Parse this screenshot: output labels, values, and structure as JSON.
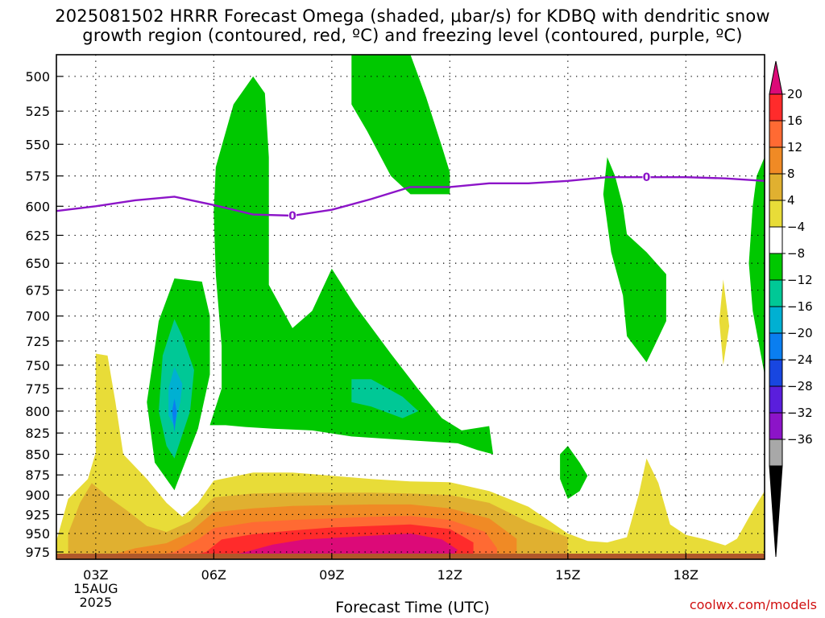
{
  "title_line1": "2025081502 HRRR Forecast Omega (shaded, μbar/s) for KDBQ with dendritic snow",
  "title_line2": "growth region (contoured, red, ºC) and freezing level (contoured, purple, ºC)",
  "credit": "coolwx.com/models",
  "chart_data": {
    "type": "contour",
    "title": "2025081502 HRRR Forecast Omega (shaded, μbar/s) for KDBQ with dendritic snow growth region (contoured, red, ºC) and freezing level (contoured, purple, ºC)",
    "xlabel": "Forecast Time (UTC)",
    "ylabel": "",
    "x_ticks": [
      {
        "hour": 3,
        "label": "03Z",
        "sub": [
          "15AUG",
          "2025"
        ]
      },
      {
        "hour": 6,
        "label": "06Z"
      },
      {
        "hour": 9,
        "label": "09Z"
      },
      {
        "hour": 12,
        "label": "12Z"
      },
      {
        "hour": 15,
        "label": "15Z"
      },
      {
        "hour": 18,
        "label": "18Z"
      }
    ],
    "xlim": [
      2,
      20
    ],
    "y_ticks": [
      500,
      525,
      550,
      575,
      600,
      625,
      650,
      675,
      700,
      725,
      750,
      775,
      800,
      825,
      850,
      875,
      900,
      925,
      950,
      975
    ],
    "y_scale": "log",
    "ylim": [
      985,
      485
    ],
    "grid": true,
    "colorbar": {
      "labels": [
        "20",
        "16",
        "12",
        "8",
        "4",
        "−4",
        "−8",
        "−12",
        "−16",
        "−20",
        "−24",
        "−28",
        "−32",
        "−36"
      ],
      "levels": [
        20,
        16,
        12,
        8,
        4,
        -4,
        -8,
        -12,
        -16,
        -20,
        -24,
        -28,
        -32,
        -36
      ],
      "colors": [
        "#dc0a78",
        "#ff2b2b",
        "#ff6a33",
        "#f08a25",
        "#e0b030",
        "#e8dc38",
        "#ffffff",
        "#00c800",
        "#00c896",
        "#00b0d2",
        "#0a7ef0",
        "#1846e0",
        "#5a1edc",
        "#8c14c8",
        "#a8a8a8",
        "#000000"
      ]
    },
    "freezing_level": {
      "label": "0",
      "points": [
        [
          2,
          604
        ],
        [
          3,
          600
        ],
        [
          4,
          595
        ],
        [
          5,
          592
        ],
        [
          6,
          599
        ],
        [
          7,
          607
        ],
        [
          8,
          608
        ],
        [
          9,
          603
        ],
        [
          10,
          594
        ],
        [
          11,
          584
        ],
        [
          12,
          584
        ],
        [
          13,
          581
        ],
        [
          14,
          581
        ],
        [
          15,
          579
        ],
        [
          16,
          576
        ],
        [
          17,
          576
        ],
        [
          18,
          576
        ],
        [
          19,
          577
        ],
        [
          20,
          579
        ]
      ]
    },
    "omega_regions": [
      {
        "value": "-8",
        "color": "#00c800",
        "polygon": [
          [
            5.0,
            894
          ],
          [
            5.6,
            820
          ],
          [
            5.9,
            760
          ],
          [
            5.9,
            700
          ],
          [
            5.7,
            667
          ],
          [
            5.0,
            664
          ],
          [
            4.6,
            705
          ],
          [
            4.3,
            790
          ],
          [
            4.5,
            860
          ]
        ]
      },
      {
        "value": "-12",
        "color": "#00c896",
        "polygon": [
          [
            5.0,
            855
          ],
          [
            5.4,
            800
          ],
          [
            5.5,
            755
          ],
          [
            5.2,
            720
          ],
          [
            5.0,
            703
          ],
          [
            4.7,
            740
          ],
          [
            4.6,
            800
          ],
          [
            4.8,
            840
          ]
        ]
      },
      {
        "value": "-16",
        "color": "#00b0d2",
        "polygon": [
          [
            5.0,
            818
          ],
          [
            5.15,
            790
          ],
          [
            5.2,
            770
          ],
          [
            5.0,
            752
          ],
          [
            4.85,
            775
          ],
          [
            4.85,
            805
          ]
        ]
      },
      {
        "value": "-20",
        "color": "#0a7ef0",
        "polygon": [
          [
            5.0,
            824
          ],
          [
            5.06,
            800
          ],
          [
            5.0,
            786
          ],
          [
            4.94,
            800
          ]
        ]
      },
      {
        "value": "-8",
        "color": "#00c800",
        "polygon": [
          [
            7.0,
            500
          ],
          [
            7.3,
            512
          ],
          [
            7.4,
            560
          ],
          [
            7.4,
            670
          ],
          [
            8.0,
            712
          ],
          [
            8.5,
            695
          ],
          [
            9.0,
            655
          ],
          [
            9.6,
            690
          ],
          [
            10.5,
            738
          ],
          [
            11.2,
            776
          ],
          [
            11.8,
            808
          ],
          [
            12.3,
            822
          ],
          [
            13.0,
            817
          ],
          [
            13.1,
            850
          ],
          [
            12.7,
            845
          ],
          [
            12.2,
            837
          ],
          [
            11.5,
            835
          ],
          [
            10.5,
            832
          ],
          [
            9.5,
            829
          ],
          [
            8.5,
            822
          ],
          [
            7.5,
            820
          ],
          [
            6.8,
            818
          ],
          [
            6.3,
            816
          ],
          [
            5.9,
            816
          ],
          [
            6.2,
            775
          ],
          [
            6.2,
            730
          ],
          [
            6.05,
            660
          ],
          [
            6.0,
            605
          ],
          [
            6.05,
            568
          ],
          [
            6.5,
            520
          ]
        ]
      },
      {
        "value": "-12",
        "color": "#00c896",
        "polygon": [
          [
            9.5,
            765
          ],
          [
            10.0,
            765
          ],
          [
            10.8,
            784
          ],
          [
            11.2,
            800
          ],
          [
            10.8,
            808
          ],
          [
            10.0,
            795
          ],
          [
            9.5,
            790
          ]
        ]
      },
      {
        "value": "-8",
        "color": "#00c800",
        "polygon": [
          [
            9.5,
            485
          ],
          [
            11.0,
            485
          ],
          [
            11.4,
            515
          ],
          [
            11.8,
            552
          ],
          [
            12.0,
            572
          ],
          [
            12.0,
            590
          ],
          [
            11.0,
            590
          ],
          [
            10.5,
            575
          ],
          [
            9.9,
            540
          ],
          [
            9.5,
            520
          ]
        ]
      },
      {
        "value": "-8",
        "color": "#00c800",
        "polygon": [
          [
            16.0,
            560
          ],
          [
            16.2,
            575
          ],
          [
            16.4,
            600
          ],
          [
            16.5,
            624
          ],
          [
            17.0,
            640
          ],
          [
            17.5,
            660
          ],
          [
            17.5,
            705
          ],
          [
            17.2,
            730
          ],
          [
            17.0,
            747
          ],
          [
            16.5,
            720
          ],
          [
            16.4,
            680
          ],
          [
            16.1,
            640
          ],
          [
            15.9,
            590
          ]
        ]
      },
      {
        "value": "-8",
        "color": "#00c800",
        "polygon": [
          [
            15.0,
            840
          ],
          [
            15.3,
            860
          ],
          [
            15.5,
            876
          ],
          [
            15.3,
            895
          ],
          [
            15.0,
            905
          ],
          [
            14.8,
            880
          ],
          [
            14.8,
            850
          ]
        ]
      },
      {
        "value": "-8",
        "color": "#00c800",
        "polygon": [
          [
            20.0,
            560
          ],
          [
            20.0,
            760
          ],
          [
            19.7,
            695
          ],
          [
            19.6,
            650
          ],
          [
            19.7,
            600
          ],
          [
            19.8,
            575
          ]
        ]
      },
      {
        "value": "4",
        "color": "#e8dc38",
        "polygon": [
          [
            2.0,
            985
          ],
          [
            2.0,
            960
          ],
          [
            2.3,
            905
          ],
          [
            2.8,
            880
          ],
          [
            3.0,
            848
          ],
          [
            3.0,
            738
          ],
          [
            3.3,
            740
          ],
          [
            3.5,
            790
          ],
          [
            3.7,
            850
          ],
          [
            4.3,
            880
          ],
          [
            4.8,
            910
          ],
          [
            5.2,
            928
          ],
          [
            5.6,
            910
          ],
          [
            6.0,
            882
          ],
          [
            7.0,
            872
          ],
          [
            8.0,
            872
          ],
          [
            9.0,
            876
          ],
          [
            10.0,
            880
          ],
          [
            11.0,
            883
          ],
          [
            12.0,
            884
          ],
          [
            13.0,
            895
          ],
          [
            14.0,
            915
          ],
          [
            15.0,
            950
          ],
          [
            15.5,
            960
          ],
          [
            16.0,
            962
          ],
          [
            16.5,
            955
          ],
          [
            16.8,
            900
          ],
          [
            17.0,
            855
          ],
          [
            17.3,
            885
          ],
          [
            17.6,
            938
          ],
          [
            18.0,
            952
          ],
          [
            18.5,
            958
          ],
          [
            19.0,
            966
          ],
          [
            19.3,
            957
          ],
          [
            19.7,
            920
          ],
          [
            20.0,
            895
          ],
          [
            20.0,
            985
          ]
        ]
      },
      {
        "value": "8",
        "color": "#e0b030",
        "polygon": [
          [
            2.3,
            985
          ],
          [
            2.3,
            950
          ],
          [
            2.6,
            910
          ],
          [
            2.9,
            885
          ],
          [
            3.3,
            902
          ],
          [
            3.8,
            920
          ],
          [
            4.3,
            940
          ],
          [
            4.8,
            948
          ],
          [
            5.4,
            934
          ],
          [
            6.0,
            903
          ],
          [
            7.0,
            898
          ],
          [
            8.0,
            897
          ],
          [
            9.0,
            897
          ],
          [
            10.0,
            897
          ],
          [
            11.0,
            898
          ],
          [
            12.0,
            900
          ],
          [
            13.0,
            910
          ],
          [
            14.0,
            935
          ],
          [
            15.0,
            955
          ],
          [
            15.0,
            985
          ]
        ]
      },
      {
        "value": "12",
        "color": "#f08a25",
        "polygon": [
          [
            3.0,
            985
          ],
          [
            4.0,
            970
          ],
          [
            4.8,
            963
          ],
          [
            5.4,
            948
          ],
          [
            6.0,
            922
          ],
          [
            7.0,
            917
          ],
          [
            8.0,
            914
          ],
          [
            9.0,
            913
          ],
          [
            10.0,
            912
          ],
          [
            11.0,
            912
          ],
          [
            12.0,
            917
          ],
          [
            13.0,
            930
          ],
          [
            13.7,
            957
          ],
          [
            13.7,
            985
          ]
        ]
      },
      {
        "value": "16",
        "color": "#ff6a33",
        "polygon": [
          [
            4.0,
            985
          ],
          [
            5.0,
            975
          ],
          [
            5.6,
            958
          ],
          [
            6.0,
            943
          ],
          [
            7.0,
            935
          ],
          [
            8.0,
            932
          ],
          [
            9.0,
            930
          ],
          [
            10.0,
            928
          ],
          [
            11.0,
            927
          ],
          [
            12.0,
            932
          ],
          [
            12.9,
            948
          ],
          [
            13.2,
            970
          ],
          [
            13.2,
            985
          ]
        ]
      },
      {
        "value": "20",
        "color": "#ff2b2b",
        "polygon": [
          [
            5.0,
            985
          ],
          [
            5.8,
            975
          ],
          [
            6.2,
            958
          ],
          [
            7.0,
            951
          ],
          [
            8.0,
            946
          ],
          [
            9.0,
            942
          ],
          [
            10.0,
            940
          ],
          [
            11.0,
            938
          ],
          [
            12.0,
            944
          ],
          [
            12.6,
            962
          ],
          [
            12.6,
            985
          ]
        ]
      },
      {
        "value": ">20",
        "color": "#dc0a78",
        "polygon": [
          [
            6.0,
            985
          ],
          [
            6.8,
            975
          ],
          [
            7.5,
            965
          ],
          [
            8.3,
            958
          ],
          [
            9.0,
            956
          ],
          [
            10.0,
            953
          ],
          [
            11.0,
            950
          ],
          [
            11.8,
            958
          ],
          [
            12.2,
            972
          ],
          [
            12.0,
            985
          ]
        ]
      },
      {
        "value": "4",
        "color": "#e8dc38",
        "polygon": [
          [
            18.95,
            665
          ],
          [
            19.1,
            710
          ],
          [
            18.95,
            750
          ],
          [
            18.85,
            705
          ]
        ]
      }
    ],
    "surface_color": "#b0582a"
  }
}
